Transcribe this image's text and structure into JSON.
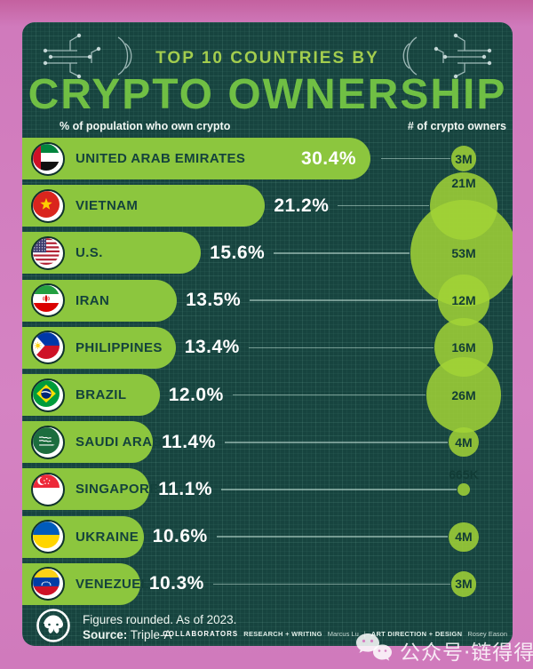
{
  "header": {
    "kicker": "TOP 10 COUNTRIES BY",
    "title": "CRYPTO OWNERSHIP",
    "left_col_label": "% of population who own crypto",
    "right_col_label": "# of crypto owners"
  },
  "footer": {
    "note": "Figures rounded. As of 2023.",
    "source_label": "Source:",
    "source_value": "Triple-A",
    "collaborators_label": "COLLABORATORS",
    "credit1_label": "RESEARCH + WRITING",
    "credit1_value": "Marcus Lu",
    "divider": "|",
    "credit2_label": "ART DIRECTION + DESIGN",
    "credit2_value": "Rosey Eason"
  },
  "watermark": {
    "text": "公众号·链得得"
  },
  "colors": {
    "background_pink": "#d583c3",
    "card_teal": "#17443f",
    "bar_green": "#8cc63e",
    "bubble_green": "#a2d436",
    "title_green": "#70bf44",
    "kicker_green": "#a3cd4e",
    "dark_text": "#14423c",
    "white_text": "#ffffff"
  },
  "chart_data": {
    "type": "bar",
    "title": "TOP 10 COUNTRIES BY CRYPTO OWNERSHIP",
    "xlabel": "% of population who own crypto",
    "bubble_metric": "# of crypto owners",
    "x_max_pct": 30.4,
    "legend_position": "none",
    "grid": true,
    "rows": [
      {
        "country": "UNITED ARAB EMIRATES",
        "flag": "uae",
        "pct": 30.4,
        "pct_label": "30.4%",
        "owners_label": "3M",
        "owners_millions": 3,
        "pct_inside_bar": true,
        "bubble_label_dy": 0
      },
      {
        "country": "VIETNAM",
        "flag": "vietnam",
        "pct": 21.2,
        "pct_label": "21.2%",
        "owners_label": "21M",
        "owners_millions": 21,
        "bubble_label_dy": -26
      },
      {
        "country": "U.S.",
        "flag": "us",
        "pct": 15.6,
        "pct_label": "15.6%",
        "owners_label": "53M",
        "owners_millions": 53,
        "bubble_label_dy": 0
      },
      {
        "country": "IRAN",
        "flag": "iran",
        "pct": 13.5,
        "pct_label": "13.5%",
        "owners_label": "12M",
        "owners_millions": 12,
        "bubble_label_dy": 0
      },
      {
        "country": "PHILIPPINES",
        "flag": "philippines",
        "pct": 13.4,
        "pct_label": "13.4%",
        "owners_label": "16M",
        "owners_millions": 16,
        "bubble_label_dy": 0
      },
      {
        "country": "BRAZIL",
        "flag": "brazil",
        "pct": 12.0,
        "pct_label": "12.0%",
        "owners_label": "26M",
        "owners_millions": 26,
        "bubble_label_dy": 0
      },
      {
        "country": "SAUDI ARABIA",
        "flag": "saudi-arabia",
        "pct": 11.4,
        "pct_label": "11.4%",
        "owners_label": "4M",
        "owners_millions": 4,
        "bubble_label_dy": 0
      },
      {
        "country": "SINGAPORE",
        "flag": "singapore",
        "pct": 11.1,
        "pct_label": "11.1%",
        "owners_label": "665K",
        "owners_millions": 0.665,
        "bubble_label_dy": -17
      },
      {
        "country": "UKRAINE",
        "flag": "ukraine",
        "pct": 10.6,
        "pct_label": "10.6%",
        "owners_label": "4M",
        "owners_millions": 4,
        "bubble_label_dy": 0
      },
      {
        "country": "VENEZUELA",
        "flag": "venezuela",
        "pct": 10.3,
        "pct_label": "10.3%",
        "owners_label": "3M",
        "owners_millions": 3,
        "bubble_label_dy": 0
      }
    ]
  }
}
